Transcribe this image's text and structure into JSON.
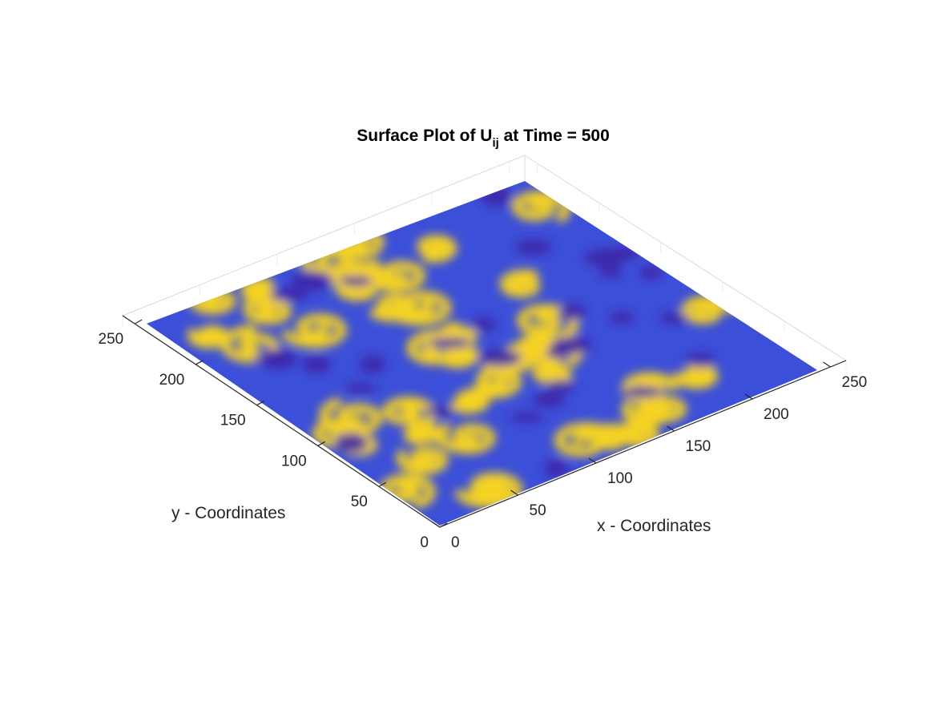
{
  "chart_data": {
    "type": "surface",
    "title": "Surface Plot of U",
    "title_subscript": "ij",
    "title_suffix": " at Time = 500",
    "xlabel": "x - Coordinates",
    "ylabel": "y - Coordinates",
    "xlim": [
      0,
      260
    ],
    "ylim": [
      0,
      260
    ],
    "x_ticks": [
      0,
      50,
      100,
      150,
      200,
      250
    ],
    "y_ticks": [
      0,
      50,
      100,
      150,
      200,
      250
    ],
    "grid": true,
    "colormap": "parula",
    "colors": {
      "low": "#3e26a8",
      "mid_low": "#2d8ef0",
      "mid": "#20c0b0",
      "high": "#f5d323",
      "top": "#f9fb0e"
    },
    "pattern": "spiral waves"
  }
}
